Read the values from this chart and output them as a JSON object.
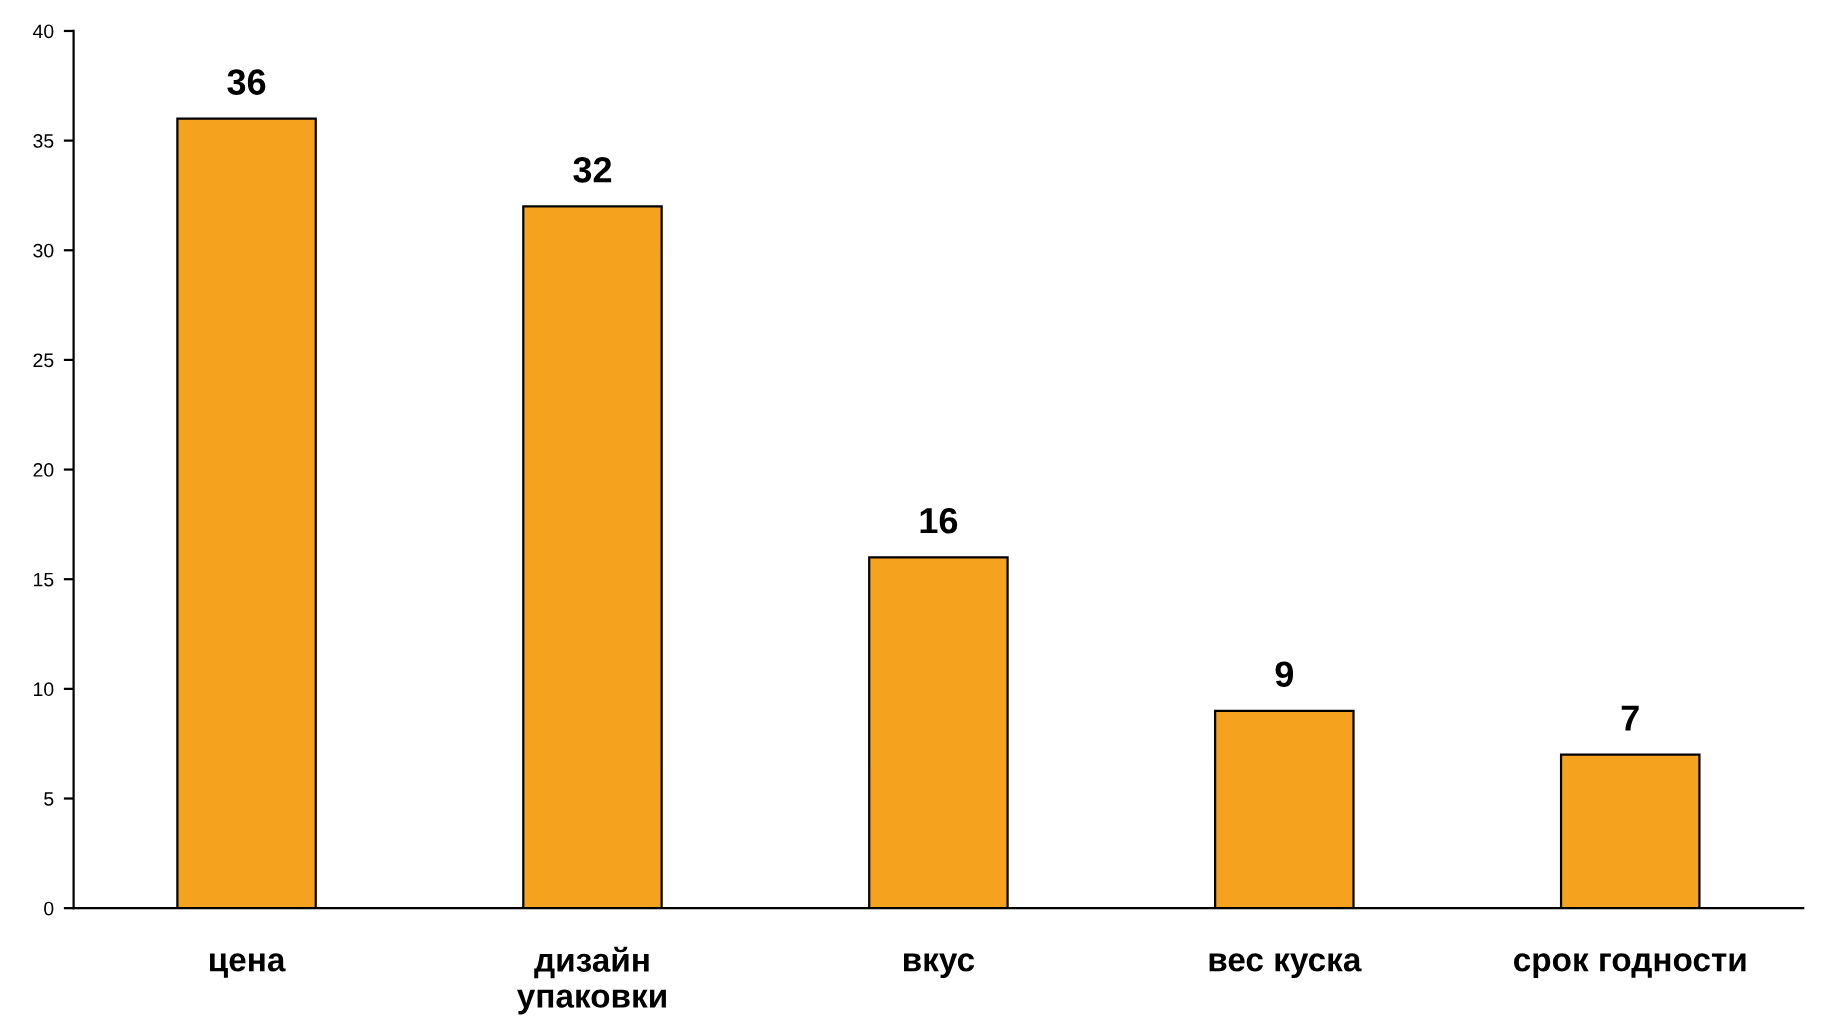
{
  "chart_data": {
    "type": "bar",
    "categories": [
      "цена",
      "дизайн\nупаковки",
      "вкус",
      "вес куска",
      "срок годности"
    ],
    "values": [
      36,
      32,
      16,
      9,
      7
    ],
    "color": "#f5a31e",
    "ylim": [
      0,
      40
    ],
    "yticks": [
      0,
      5,
      10,
      15,
      20,
      25,
      30,
      35,
      40
    ],
    "grid": false,
    "data_labels": true
  }
}
